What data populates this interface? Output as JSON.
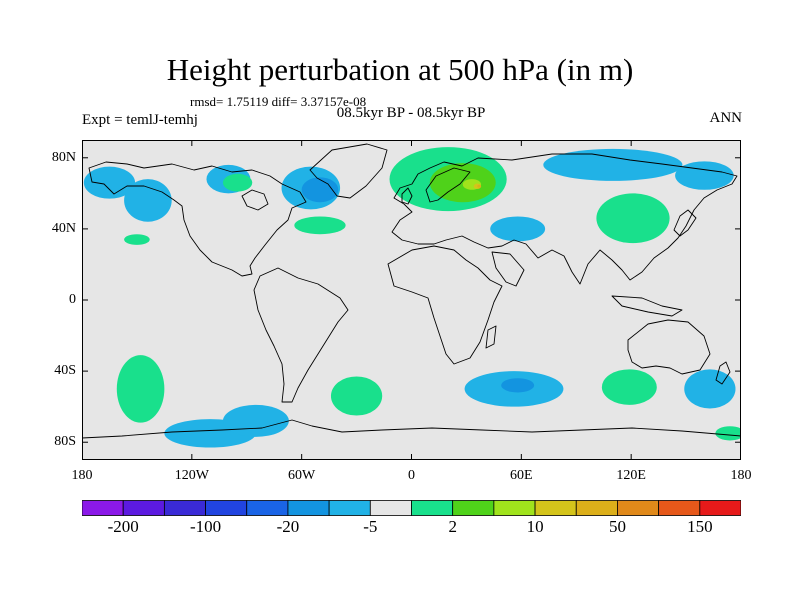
{
  "title": "Height perturbation at 500 hPa (in m)",
  "stats": "rmsd= 1.75119 diff= 3.37157e-08",
  "period": "08.5kyr BP - 08.5kyr BP",
  "experiment": "Expt = temlJ-temhj",
  "season": "ANN",
  "map": {
    "projection": "cylindrical equidistant",
    "lon_range": [
      -180,
      180
    ],
    "lat_range": [
      -90,
      90
    ],
    "background_color": "#e6e6e6",
    "coastline_color": "#000000",
    "lat_labels": [
      {
        "lat": 80,
        "text": "80N"
      },
      {
        "lat": 40,
        "text": "40N"
      },
      {
        "lat": 0,
        "text": "0"
      },
      {
        "lat": -40,
        "text": "40S"
      },
      {
        "lat": -80,
        "text": "80S"
      }
    ],
    "lon_labels": [
      {
        "lon": -180,
        "text": "180"
      },
      {
        "lon": -120,
        "text": "120W"
      },
      {
        "lon": -60,
        "text": "60W"
      },
      {
        "lon": 0,
        "text": "0"
      },
      {
        "lon": 60,
        "text": "60E"
      },
      {
        "lon": 120,
        "text": "120E"
      },
      {
        "lon": 180,
        "text": "180"
      }
    ]
  },
  "anomaly_regions": [
    {
      "lon": -165,
      "lat": 66,
      "rx": 14,
      "ry": 9,
      "color": "#21b2e6"
    },
    {
      "lon": -144,
      "lat": 56,
      "rx": 13,
      "ry": 12,
      "color": "#21b2e6"
    },
    {
      "lon": -150,
      "lat": 34,
      "rx": 7,
      "ry": 3,
      "color": "#19e08c"
    },
    {
      "lon": -100,
      "lat": 68,
      "rx": 12,
      "ry": 8,
      "color": "#21b2e6"
    },
    {
      "lon": -95,
      "lat": 66,
      "rx": 8,
      "ry": 5,
      "color": "#19e08c"
    },
    {
      "lon": -55,
      "lat": 63,
      "rx": 16,
      "ry": 12,
      "color": "#21b2e6"
    },
    {
      "lon": -50,
      "lat": 62,
      "rx": 10,
      "ry": 7,
      "color": "#1394e0"
    },
    {
      "lon": -50,
      "lat": 42,
      "rx": 14,
      "ry": 5,
      "color": "#19e08c"
    },
    {
      "lon": 20,
      "lat": 68,
      "rx": 32,
      "ry": 18,
      "color": "#19e08c"
    },
    {
      "lon": 28,
      "lat": 66,
      "rx": 18,
      "ry": 11,
      "color": "#4fd21a"
    },
    {
      "lon": 33,
      "lat": 65,
      "rx": 5,
      "ry": 3,
      "color": "#a0e31c"
    },
    {
      "lon": 36,
      "lat": 64,
      "rx": 2,
      "ry": 1.5,
      "color": "#d4c41b"
    },
    {
      "lon": 37,
      "lat": 64,
      "rx": 1,
      "ry": 0.8,
      "color": "#dcaf1a"
    },
    {
      "lon": 58,
      "lat": 40,
      "rx": 15,
      "ry": 7,
      "color": "#21b2e6"
    },
    {
      "lon": 121,
      "lat": 46,
      "rx": 20,
      "ry": 14,
      "color": "#19e08c"
    },
    {
      "lon": 110,
      "lat": 76,
      "rx": 38,
      "ry": 9,
      "color": "#21b2e6"
    },
    {
      "lon": 160,
      "lat": 70,
      "rx": 16,
      "ry": 8,
      "color": "#21b2e6"
    },
    {
      "lon": -148,
      "lat": -50,
      "rx": 13,
      "ry": 19,
      "color": "#19e08c"
    },
    {
      "lon": -110,
      "lat": -75,
      "rx": 25,
      "ry": 8,
      "color": "#21b2e6"
    },
    {
      "lon": -85,
      "lat": -68,
      "rx": 18,
      "ry": 9,
      "color": "#21b2e6"
    },
    {
      "lon": -30,
      "lat": -54,
      "rx": 14,
      "ry": 11,
      "color": "#19e08c"
    },
    {
      "lon": 56,
      "lat": -50,
      "rx": 27,
      "ry": 10,
      "color": "#21b2e6"
    },
    {
      "lon": 58,
      "lat": -48,
      "rx": 9,
      "ry": 4,
      "color": "#1394e0"
    },
    {
      "lon": 119,
      "lat": -49,
      "rx": 15,
      "ry": 10,
      "color": "#19e08c"
    },
    {
      "lon": 163,
      "lat": -50,
      "rx": 14,
      "ry": 11,
      "color": "#21b2e6"
    },
    {
      "lon": 174,
      "lat": -75,
      "rx": 8,
      "ry": 4,
      "color": "#19e08c"
    }
  ],
  "colorbar": {
    "colors": [
      "#8b19e8",
      "#5c1ae0",
      "#3a2ad6",
      "#2144e0",
      "#1a64e6",
      "#1394e0",
      "#21b2e6",
      "#e6e6e6",
      "#19e08c",
      "#4fd21a",
      "#a0e31c",
      "#d4c41b",
      "#dcaf1a",
      "#e0891a",
      "#e6581a",
      "#e61a1a"
    ],
    "labels": [
      {
        "boundary": 1,
        "text": "-200"
      },
      {
        "boundary": 3,
        "text": "-100"
      },
      {
        "boundary": 5,
        "text": "-20"
      },
      {
        "boundary": 7,
        "text": "-5"
      },
      {
        "boundary": 9,
        "text": "2"
      },
      {
        "boundary": 11,
        "text": "10"
      },
      {
        "boundary": 13,
        "text": "50"
      },
      {
        "boundary": 15,
        "text": "150"
      }
    ]
  }
}
